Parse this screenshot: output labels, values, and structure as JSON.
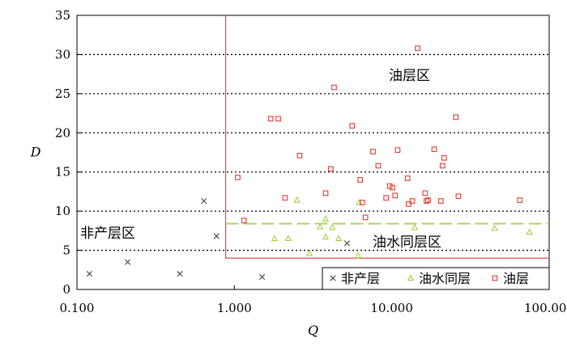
{
  "chart_data": {
    "type": "scatter",
    "xlabel": "Q",
    "ylabel": "D",
    "xscale": "log",
    "xlim": [
      0.1,
      100
    ],
    "ylim": [
      0,
      35
    ],
    "x_tick_labels": [
      "0.100",
      "1.000",
      "10.000",
      "100.000"
    ],
    "y_tick_labels": [
      "0",
      "5",
      "10",
      "15",
      "20",
      "25",
      "30",
      "35"
    ],
    "grid": "horizontal dotted",
    "legend_position": "bottom-right",
    "colors": {
      "非产层": "#444444",
      "油水同层": "#9acd32",
      "油层": "#e03c31",
      "boundary": "#e05050",
      "separator": "#b5cf6b"
    },
    "series": [
      {
        "name": "非产层",
        "marker": "x",
        "points": [
          [
            0.12,
            2.0
          ],
          [
            0.21,
            3.5
          ],
          [
            0.45,
            2.0
          ],
          [
            0.64,
            11.3
          ],
          [
            0.77,
            6.8
          ],
          [
            1.5,
            1.6
          ],
          [
            5.2,
            5.9
          ]
        ]
      },
      {
        "name": "油水同层",
        "marker": "triangle",
        "points": [
          [
            1.8,
            6.5
          ],
          [
            2.2,
            6.5
          ],
          [
            2.5,
            11.4
          ],
          [
            3.0,
            4.6
          ],
          [
            3.5,
            8.0
          ],
          [
            3.8,
            6.7
          ],
          [
            3.8,
            9.0
          ],
          [
            4.2,
            7.9
          ],
          [
            4.6,
            6.5
          ],
          [
            6.1,
            4.3
          ],
          [
            6.2,
            11.1
          ],
          [
            14.0,
            7.9
          ],
          [
            45.0,
            7.8
          ],
          [
            75.0,
            7.3
          ]
        ]
      },
      {
        "name": "油层",
        "marker": "square",
        "points": [
          [
            1.05,
            14.3
          ],
          [
            1.15,
            8.8
          ],
          [
            1.7,
            21.8
          ],
          [
            1.9,
            21.8
          ],
          [
            2.1,
            11.7
          ],
          [
            2.6,
            17.1
          ],
          [
            3.8,
            12.3
          ],
          [
            4.1,
            15.4
          ],
          [
            4.3,
            25.8
          ],
          [
            5.6,
            20.9
          ],
          [
            6.3,
            14.0
          ],
          [
            6.5,
            11.1
          ],
          [
            6.8,
            9.2
          ],
          [
            7.6,
            17.6
          ],
          [
            8.2,
            15.8
          ],
          [
            9.2,
            11.7
          ],
          [
            9.7,
            13.2
          ],
          [
            10.1,
            13.0
          ],
          [
            10.5,
            12.0
          ],
          [
            10.9,
            17.8
          ],
          [
            12.6,
            14.2
          ],
          [
            12.8,
            10.9
          ],
          [
            13.5,
            11.3
          ],
          [
            14.6,
            30.8
          ],
          [
            16.3,
            12.3
          ],
          [
            16.6,
            11.3
          ],
          [
            17.0,
            11.4
          ],
          [
            18.6,
            17.9
          ],
          [
            20.5,
            11.3
          ],
          [
            21.0,
            15.8
          ],
          [
            21.5,
            16.8
          ],
          [
            25.5,
            22.0
          ],
          [
            26.5,
            11.9
          ],
          [
            65.0,
            11.4
          ]
        ]
      }
    ],
    "annotations": [
      "油层区",
      "非产层区",
      "油水同层区"
    ],
    "boundaries": {
      "q_threshold": 0.88,
      "d_threshold": 4.0,
      "oil_water_separator_d": 8.4
    }
  }
}
